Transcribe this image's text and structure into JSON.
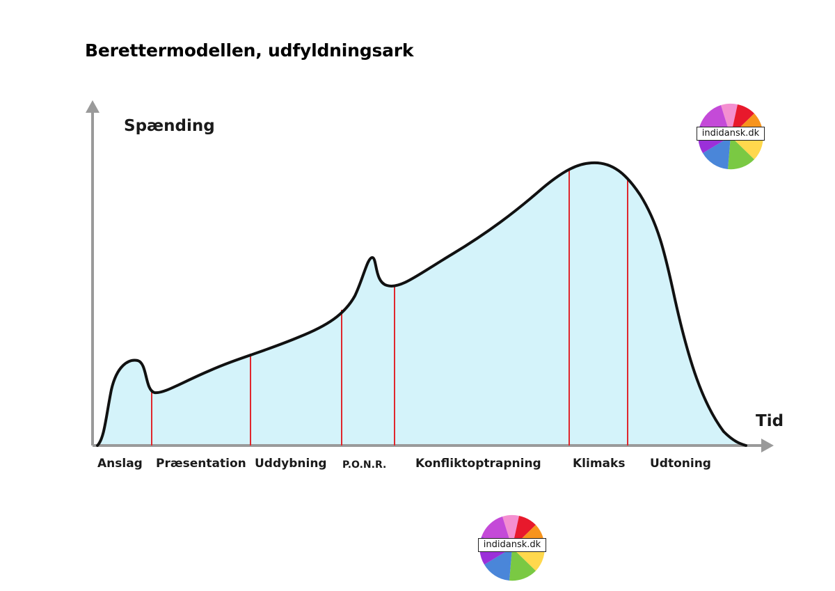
{
  "document": {
    "title": "Berettermodellen, udfyldningsark"
  },
  "diagram": {
    "y_axis_label": "Spænding",
    "x_axis_label": "Tid",
    "phases": [
      "Anslag",
      "Præsentation",
      "Uddybning",
      "P.O.N.R.",
      "Konfliktoptrapning",
      "Klimaks",
      "Udtoning"
    ],
    "colors": {
      "fill": "#d4f3fa",
      "curve": "#111111",
      "divider": "#e0262c",
      "axis": "#9a9a9a"
    }
  },
  "logos": [
    {
      "text": "indidansk.dk"
    },
    {
      "text": "indidansk.dk"
    }
  ]
}
